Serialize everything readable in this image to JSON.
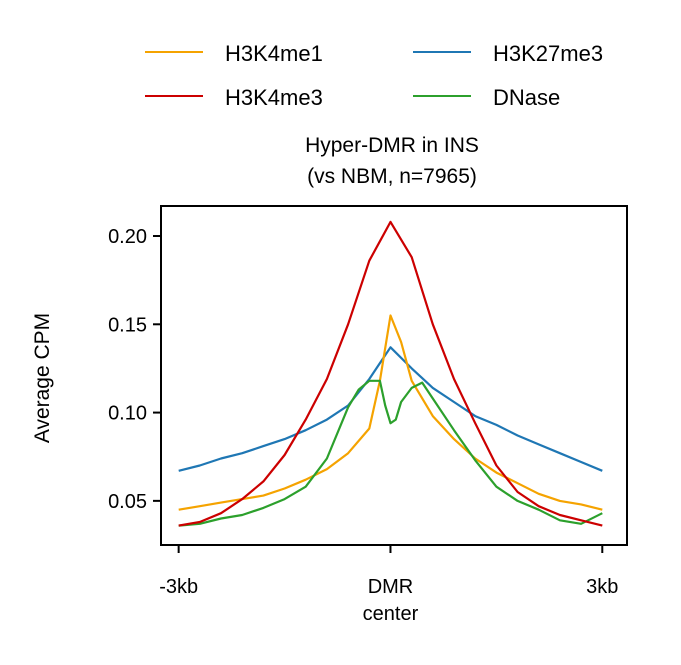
{
  "chart_data": {
    "type": "line",
    "title": "Hyper-DMR in INS",
    "subtitle": "(vs NBM, n=7965)",
    "ylabel": "Average CPM",
    "xlabel": "",
    "x_ticks": [
      {
        "label": "-3kb",
        "value": -3000
      },
      {
        "label": "DMR\ncenter",
        "value": 0
      },
      {
        "label": "3kb",
        "value": 3000
      }
    ],
    "x_range": [
      -3000,
      3000
    ],
    "xlim": [
      -3250,
      3350
    ],
    "y_ticks": [
      0.05,
      0.1,
      0.15,
      0.2
    ],
    "y_tick_labels": [
      "0.05",
      "0.10",
      "0.15",
      "0.20"
    ],
    "ylim": [
      0.025,
      0.217
    ],
    "grid": false,
    "legend_placement": "top-center, 2 columns",
    "series": [
      {
        "name": "H3K4me1",
        "color": "#f5a300",
        "x": [
          -3000,
          -2700,
          -2400,
          -2100,
          -1800,
          -1500,
          -1200,
          -900,
          -600,
          -300,
          -150,
          0,
          150,
          300,
          600,
          900,
          1200,
          1500,
          1800,
          2100,
          2400,
          2700,
          3000
        ],
        "y": [
          0.045,
          0.047,
          0.049,
          0.051,
          0.053,
          0.057,
          0.062,
          0.068,
          0.077,
          0.091,
          0.118,
          0.155,
          0.14,
          0.118,
          0.098,
          0.085,
          0.074,
          0.066,
          0.06,
          0.054,
          0.05,
          0.048,
          0.045
        ]
      },
      {
        "name": "H3K4me3",
        "color": "#cc0000",
        "x": [
          -3000,
          -2700,
          -2400,
          -2100,
          -1800,
          -1500,
          -1200,
          -900,
          -600,
          -300,
          0,
          300,
          600,
          900,
          1200,
          1500,
          1800,
          2100,
          2400,
          2700,
          3000
        ],
        "y": [
          0.036,
          0.038,
          0.043,
          0.051,
          0.061,
          0.076,
          0.096,
          0.119,
          0.15,
          0.186,
          0.208,
          0.188,
          0.15,
          0.119,
          0.094,
          0.07,
          0.055,
          0.047,
          0.042,
          0.039,
          0.036
        ]
      },
      {
        "name": "H3K27me3",
        "color": "#1f77b4",
        "x": [
          -3000,
          -2700,
          -2400,
          -2100,
          -1800,
          -1500,
          -1200,
          -900,
          -600,
          -300,
          0,
          300,
          600,
          900,
          1200,
          1500,
          1800,
          2100,
          2400,
          2700,
          3000
        ],
        "y": [
          0.067,
          0.07,
          0.074,
          0.077,
          0.081,
          0.085,
          0.09,
          0.096,
          0.104,
          0.119,
          0.137,
          0.125,
          0.114,
          0.106,
          0.098,
          0.093,
          0.087,
          0.082,
          0.077,
          0.072,
          0.067
        ]
      },
      {
        "name": "DNase",
        "color": "#2ca02c",
        "x": [
          -3000,
          -2700,
          -2400,
          -2100,
          -1800,
          -1500,
          -1200,
          -900,
          -600,
          -450,
          -300,
          -150,
          -75,
          0,
          75,
          150,
          300,
          450,
          600,
          900,
          1200,
          1500,
          1800,
          2100,
          2400,
          2700,
          3000
        ],
        "y": [
          0.036,
          0.037,
          0.04,
          0.042,
          0.046,
          0.051,
          0.058,
          0.074,
          0.103,
          0.113,
          0.118,
          0.118,
          0.104,
          0.094,
          0.096,
          0.106,
          0.114,
          0.117,
          0.108,
          0.09,
          0.073,
          0.058,
          0.05,
          0.045,
          0.039,
          0.037,
          0.043
        ]
      }
    ]
  }
}
